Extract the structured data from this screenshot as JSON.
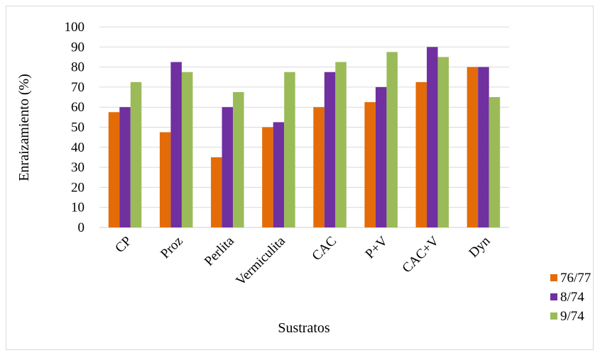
{
  "chart_data": {
    "type": "bar",
    "categories": [
      "CP",
      "Proz",
      "Perlita",
      "Vermiculita",
      "CAC",
      "P+V",
      "CAC+V",
      "Dyn"
    ],
    "series": [
      {
        "name": "76/77",
        "color": "#e36c09",
        "values": [
          57.5,
          47.5,
          35,
          50,
          60,
          62.5,
          72.5,
          80
        ]
      },
      {
        "name": "8/74",
        "color": "#7030a0",
        "values": [
          60,
          82.5,
          60,
          52.5,
          77.5,
          70,
          90,
          80
        ]
      },
      {
        "name": "9/74",
        "color": "#9bbb59",
        "values": [
          72.5,
          77.5,
          67.5,
          77.5,
          82.5,
          87.5,
          85,
          65
        ]
      }
    ],
    "xlabel": "Sustratos",
    "ylabel": "Enraizamiento (%)",
    "ylim": [
      0,
      100
    ],
    "yticks": [
      0,
      10,
      20,
      30,
      40,
      50,
      60,
      70,
      80,
      90,
      100
    ],
    "grid": true,
    "legend": "bottom-right"
  }
}
